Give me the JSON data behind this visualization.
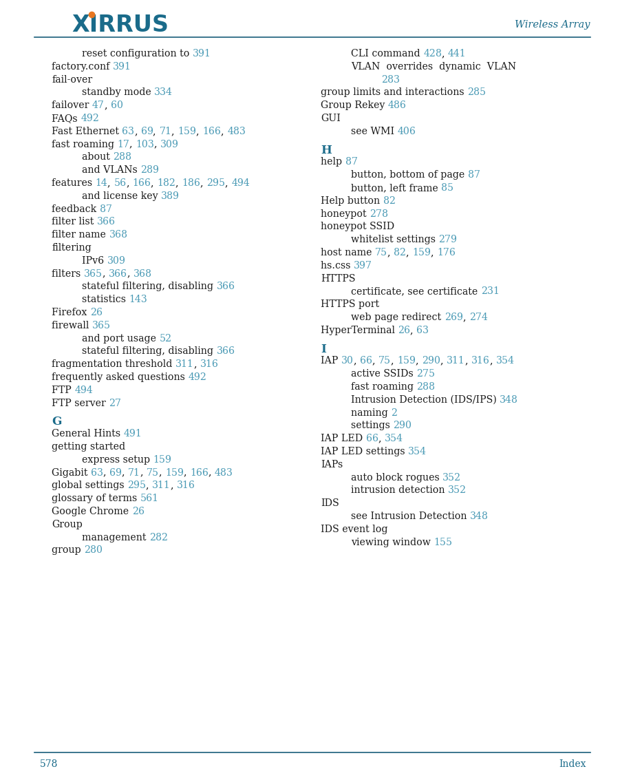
{
  "page_title": "Wireless Array",
  "page_num": "578",
  "page_index": "Index",
  "title_color": "#1a6b8a",
  "link_color": "#4a9ab5",
  "text_color": "#1a1a1a",
  "header_line_color": "#1a5f7a",
  "background": "#ffffff",
  "left_col": [
    {
      "text": "reset configuration to ",
      "links": [
        {
          "num": "391",
          "after": ""
        }
      ],
      "indent": 2
    },
    {
      "text": "factory.conf ",
      "links": [
        {
          "num": "391",
          "after": ""
        }
      ],
      "indent": 0
    },
    {
      "text": "fail-over",
      "links": [],
      "indent": 0
    },
    {
      "text": "standby mode ",
      "links": [
        {
          "num": "334",
          "after": ""
        }
      ],
      "indent": 2
    },
    {
      "text": "failover ",
      "links": [
        {
          "num": "47",
          "after": ", "
        },
        {
          "num": "60",
          "after": ""
        }
      ],
      "indent": 0
    },
    {
      "text": "FAQs ",
      "links": [
        {
          "num": "492",
          "after": ""
        }
      ],
      "indent": 0
    },
    {
      "text": "Fast Ethernet ",
      "links": [
        {
          "num": "63",
          "after": ", "
        },
        {
          "num": "69",
          "after": ", "
        },
        {
          "num": "71",
          "after": ", "
        },
        {
          "num": "159",
          "after": ", "
        },
        {
          "num": "166",
          "after": ", "
        },
        {
          "num": "483",
          "after": ""
        }
      ],
      "indent": 0
    },
    {
      "text": "fast roaming ",
      "links": [
        {
          "num": "17",
          "after": ", "
        },
        {
          "num": "103",
          "after": ", "
        },
        {
          "num": "309",
          "after": ""
        }
      ],
      "indent": 0
    },
    {
      "text": "about ",
      "links": [
        {
          "num": "288",
          "after": ""
        }
      ],
      "indent": 2
    },
    {
      "text": "and VLANs ",
      "links": [
        {
          "num": "289",
          "after": ""
        }
      ],
      "indent": 2
    },
    {
      "text": "features ",
      "links": [
        {
          "num": "14",
          "after": ", "
        },
        {
          "num": "56",
          "after": ", "
        },
        {
          "num": "166",
          "after": ", "
        },
        {
          "num": "182",
          "after": ", "
        },
        {
          "num": "186",
          "after": ", "
        },
        {
          "num": "295",
          "after": ", "
        },
        {
          "num": "494",
          "after": ""
        }
      ],
      "indent": 0
    },
    {
      "text": "and license key ",
      "links": [
        {
          "num": "389",
          "after": ""
        }
      ],
      "indent": 2
    },
    {
      "text": "feedback ",
      "links": [
        {
          "num": "87",
          "after": ""
        }
      ],
      "indent": 0
    },
    {
      "text": "filter list ",
      "links": [
        {
          "num": "366",
          "after": ""
        }
      ],
      "indent": 0
    },
    {
      "text": "filter name ",
      "links": [
        {
          "num": "368",
          "after": ""
        }
      ],
      "indent": 0
    },
    {
      "text": "filtering",
      "links": [],
      "indent": 0
    },
    {
      "text": "IPv6 ",
      "links": [
        {
          "num": "309",
          "after": ""
        }
      ],
      "indent": 2
    },
    {
      "text": "filters ",
      "links": [
        {
          "num": "365",
          "after": ", "
        },
        {
          "num": "366",
          "after": ", "
        },
        {
          "num": "368",
          "after": ""
        }
      ],
      "indent": 0
    },
    {
      "text": "stateful filtering, disabling ",
      "links": [
        {
          "num": "366",
          "after": ""
        }
      ],
      "indent": 2
    },
    {
      "text": "statistics ",
      "links": [
        {
          "num": "143",
          "after": ""
        }
      ],
      "indent": 2
    },
    {
      "text": "Firefox ",
      "links": [
        {
          "num": "26",
          "after": ""
        }
      ],
      "indent": 0
    },
    {
      "text": "firewall ",
      "links": [
        {
          "num": "365",
          "after": ""
        }
      ],
      "indent": 0
    },
    {
      "text": "and port usage ",
      "links": [
        {
          "num": "52",
          "after": ""
        }
      ],
      "indent": 2
    },
    {
      "text": "stateful filtering, disabling ",
      "links": [
        {
          "num": "366",
          "after": ""
        }
      ],
      "indent": 2
    },
    {
      "text": "fragmentation threshold ",
      "links": [
        {
          "num": "311",
          "after": ", "
        },
        {
          "num": "316",
          "after": ""
        }
      ],
      "indent": 0
    },
    {
      "text": "frequently asked questions ",
      "links": [
        {
          "num": "492",
          "after": ""
        }
      ],
      "indent": 0
    },
    {
      "text": "FTP ",
      "links": [
        {
          "num": "494",
          "after": ""
        }
      ],
      "indent": 0
    },
    {
      "text": "FTP server ",
      "links": [
        {
          "num": "27",
          "after": ""
        }
      ],
      "indent": 0
    },
    {
      "text": "G",
      "links": [],
      "indent": 0,
      "section": true
    },
    {
      "text": "General Hints ",
      "links": [
        {
          "num": "491",
          "after": ""
        }
      ],
      "indent": 0
    },
    {
      "text": "getting started",
      "links": [],
      "indent": 0
    },
    {
      "text": "express setup ",
      "links": [
        {
          "num": "159",
          "after": ""
        }
      ],
      "indent": 2
    },
    {
      "text": "Gigabit ",
      "links": [
        {
          "num": "63",
          "after": ", "
        },
        {
          "num": "69",
          "after": ", "
        },
        {
          "num": "71",
          "after": ", "
        },
        {
          "num": "75",
          "after": ", "
        },
        {
          "num": "159",
          "after": ", "
        },
        {
          "num": "166",
          "after": ", "
        },
        {
          "num": "483",
          "after": ""
        }
      ],
      "indent": 0
    },
    {
      "text": "global settings ",
      "links": [
        {
          "num": "295",
          "after": ", "
        },
        {
          "num": "311",
          "after": ", "
        },
        {
          "num": "316",
          "after": ""
        }
      ],
      "indent": 0
    },
    {
      "text": "glossary of terms ",
      "links": [
        {
          "num": "561",
          "after": ""
        }
      ],
      "indent": 0
    },
    {
      "text": "Google Chrome ",
      "links": [
        {
          "num": "26",
          "after": ""
        }
      ],
      "indent": 0
    },
    {
      "text": "Group",
      "links": [],
      "indent": 0
    },
    {
      "text": "management ",
      "links": [
        {
          "num": "282",
          "after": ""
        }
      ],
      "indent": 2
    },
    {
      "text": "group ",
      "links": [
        {
          "num": "280",
          "after": ""
        }
      ],
      "indent": 0
    }
  ],
  "right_col": [
    {
      "text": "CLI command ",
      "links": [
        {
          "num": "428",
          "after": ", "
        },
        {
          "num": "441",
          "after": ""
        }
      ],
      "indent": 2
    },
    {
      "text": "VLAN  overrides  dynamic  VLAN",
      "links": [],
      "indent": 2,
      "plain_line2": true
    },
    {
      "text": "283",
      "links": [
        {
          "num": "283",
          "after": ""
        }
      ],
      "indent": 4,
      "link_only": true
    },
    {
      "text": "group limits and interactions ",
      "links": [
        {
          "num": "285",
          "after": ""
        }
      ],
      "indent": 0
    },
    {
      "text": "Group Rekey ",
      "links": [
        {
          "num": "486",
          "after": ""
        }
      ],
      "indent": 0
    },
    {
      "text": "GUI",
      "links": [],
      "indent": 0
    },
    {
      "text": "see WMI ",
      "links": [
        {
          "num": "406",
          "after": ""
        }
      ],
      "indent": 2
    },
    {
      "text": "H",
      "links": [],
      "indent": 0,
      "section": true
    },
    {
      "text": "help ",
      "links": [
        {
          "num": "87",
          "after": ""
        }
      ],
      "indent": 0
    },
    {
      "text": "button, bottom of page ",
      "links": [
        {
          "num": "87",
          "after": ""
        }
      ],
      "indent": 2
    },
    {
      "text": "button, left frame ",
      "links": [
        {
          "num": "85",
          "after": ""
        }
      ],
      "indent": 2
    },
    {
      "text": "Help button ",
      "links": [
        {
          "num": "82",
          "after": ""
        }
      ],
      "indent": 0
    },
    {
      "text": "honeypot ",
      "links": [
        {
          "num": "278",
          "after": ""
        }
      ],
      "indent": 0
    },
    {
      "text": "honeypot SSID",
      "links": [],
      "indent": 0
    },
    {
      "text": "whitelist settings ",
      "links": [
        {
          "num": "279",
          "after": ""
        }
      ],
      "indent": 2
    },
    {
      "text": "host name ",
      "links": [
        {
          "num": "75",
          "after": ", "
        },
        {
          "num": "82",
          "after": ", "
        },
        {
          "num": "159",
          "after": ", "
        },
        {
          "num": "176",
          "after": ""
        }
      ],
      "indent": 0
    },
    {
      "text": "hs.css ",
      "links": [
        {
          "num": "397",
          "after": ""
        }
      ],
      "indent": 0
    },
    {
      "text": "HTTPS",
      "links": [],
      "indent": 0
    },
    {
      "text": "certificate, see certificate ",
      "links": [
        {
          "num": "231",
          "after": ""
        }
      ],
      "indent": 2
    },
    {
      "text": "HTTPS port",
      "links": [],
      "indent": 0
    },
    {
      "text": "web page redirect ",
      "links": [
        {
          "num": "269",
          "after": ", "
        },
        {
          "num": "274",
          "after": ""
        }
      ],
      "indent": 2
    },
    {
      "text": "HyperTerminal ",
      "links": [
        {
          "num": "26",
          "after": ", "
        },
        {
          "num": "63",
          "after": ""
        }
      ],
      "indent": 0
    },
    {
      "text": "I",
      "links": [],
      "indent": 0,
      "section": true
    },
    {
      "text": "IAP ",
      "links": [
        {
          "num": "30",
          "after": ", "
        },
        {
          "num": "66",
          "after": ", "
        },
        {
          "num": "75",
          "after": ", "
        },
        {
          "num": "159",
          "after": ", "
        },
        {
          "num": "290",
          "after": ", "
        },
        {
          "num": "311",
          "after": ", "
        },
        {
          "num": "316",
          "after": ", "
        },
        {
          "num": "354",
          "after": ""
        }
      ],
      "indent": 0
    },
    {
      "text": "active SSIDs ",
      "links": [
        {
          "num": "275",
          "after": ""
        }
      ],
      "indent": 2
    },
    {
      "text": "fast roaming ",
      "links": [
        {
          "num": "288",
          "after": ""
        }
      ],
      "indent": 2
    },
    {
      "text": "Intrusion Detection (IDS/IPS) ",
      "links": [
        {
          "num": "348",
          "after": ""
        }
      ],
      "indent": 2
    },
    {
      "text": "naming ",
      "links": [
        {
          "num": "2",
          "after": ""
        }
      ],
      "indent": 2
    },
    {
      "text": "settings ",
      "links": [
        {
          "num": "290",
          "after": ""
        }
      ],
      "indent": 2
    },
    {
      "text": "IAP LED ",
      "links": [
        {
          "num": "66",
          "after": ", "
        },
        {
          "num": "354",
          "after": ""
        }
      ],
      "indent": 0
    },
    {
      "text": "IAP LED settings ",
      "links": [
        {
          "num": "354",
          "after": ""
        }
      ],
      "indent": 0
    },
    {
      "text": "IAPs",
      "links": [],
      "indent": 0
    },
    {
      "text": "auto block rogues ",
      "links": [
        {
          "num": "352",
          "after": ""
        }
      ],
      "indent": 2
    },
    {
      "text": "intrusion detection ",
      "links": [
        {
          "num": "352",
          "after": ""
        }
      ],
      "indent": 2
    },
    {
      "text": "IDS",
      "links": [],
      "indent": 0
    },
    {
      "text": "see Intrusion Detection ",
      "links": [
        {
          "num": "348",
          "after": ""
        }
      ],
      "indent": 2
    },
    {
      "text": "IDS event log",
      "links": [],
      "indent": 0
    },
    {
      "text": "viewing window ",
      "links": [
        {
          "num": "155",
          "after": ""
        }
      ],
      "indent": 2
    }
  ]
}
